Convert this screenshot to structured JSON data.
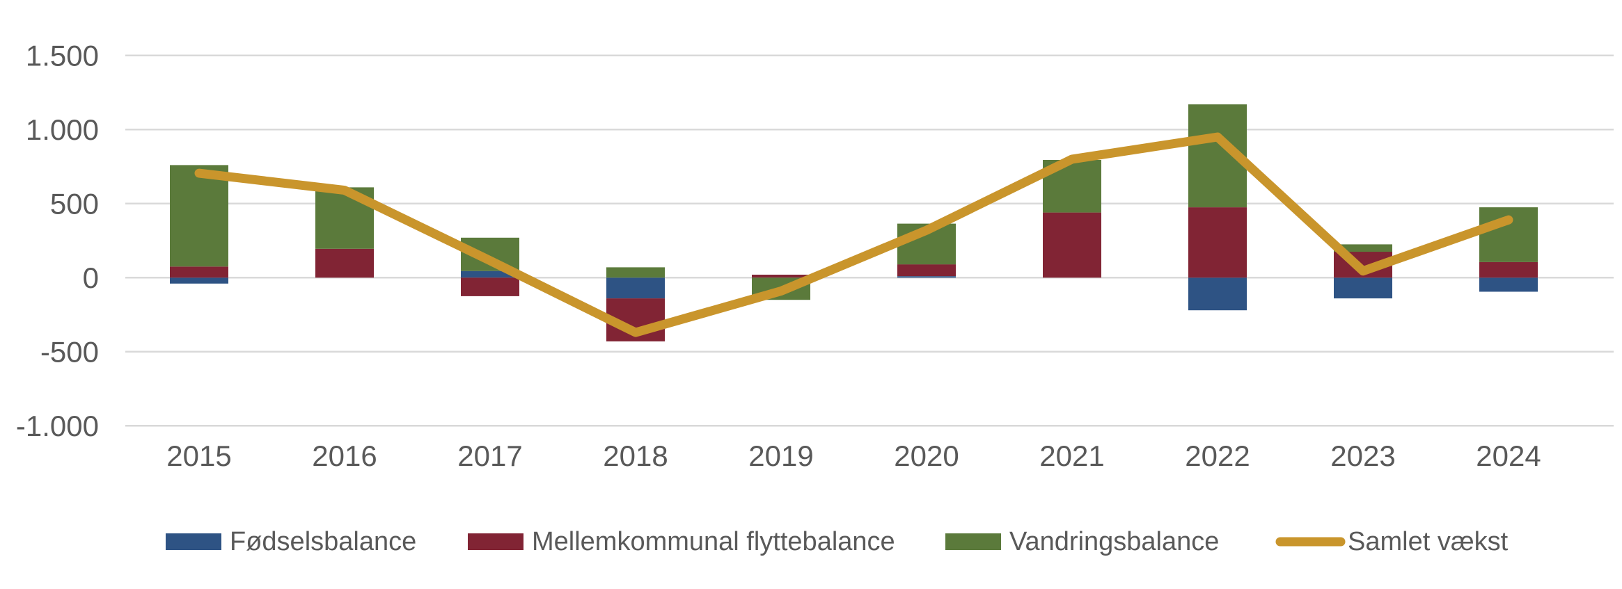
{
  "chart": {
    "background_color": "#FFFFFF",
    "axis_text_color": "#595959",
    "gridline_color": "#D9D9D9"
  },
  "chart_data": {
    "type": "bar",
    "subtype": "stacked-bars-with-total-line",
    "title": "",
    "xlabel": "",
    "ylabel": "",
    "categories": [
      "2015",
      "2016",
      "2017",
      "2018",
      "2019",
      "2020",
      "2021",
      "2022",
      "2023",
      "2024"
    ],
    "series": [
      {
        "name": "Fødselsbalance",
        "type": "bar",
        "color": "#2E5384",
        "values": [
          -40,
          0,
          45,
          -140,
          0,
          10,
          0,
          -220,
          -140,
          -95
        ]
      },
      {
        "name": "Mellemkommunal flyttebalance",
        "type": "bar",
        "color": "#812434",
        "values": [
          75,
          195,
          -125,
          -290,
          20,
          80,
          440,
          475,
          175,
          105
        ]
      },
      {
        "name": "Vandringsbalance",
        "type": "bar",
        "color": "#5B7A3B",
        "values": [
          685,
          415,
          225,
          70,
          -150,
          275,
          355,
          695,
          50,
          370
        ]
      },
      {
        "name": "Samlet vækst",
        "type": "line",
        "color": "#C9952C",
        "values": [
          705,
          590,
          115,
          -370,
          -90,
          320,
          800,
          950,
          45,
          390
        ]
      }
    ],
    "ylim": [
      -1000,
      1500
    ],
    "yticks": {
      "values": [
        1500,
        1000,
        500,
        0,
        -500,
        -1000
      ],
      "labels": [
        "1.500",
        "1.000",
        "500",
        "0",
        "-500",
        "-1.000"
      ]
    },
    "grid": true,
    "legend_position": "bottom",
    "number_format": "da-DK"
  }
}
